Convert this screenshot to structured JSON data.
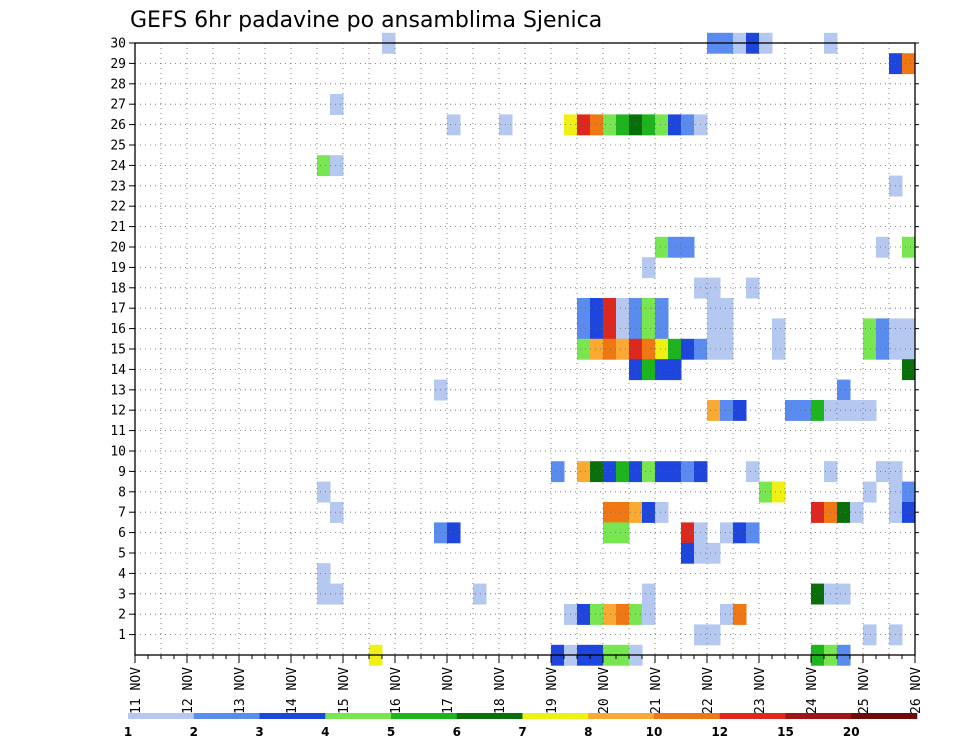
{
  "chart_data": {
    "type": "heatmap",
    "title": "GEFS 6hr padavine po ansamblima Sjenica",
    "x_labels": [
      "11 NOV",
      "12 NOV",
      "13 NOV",
      "14 NOV",
      "15 NOV",
      "16 NOV",
      "17 NOV",
      "18 NOV",
      "19 NOV",
      "20 NOV",
      "21 NOV",
      "22 NOV",
      "23 NOV",
      "24 NOV",
      "25 NOV",
      "26 NOV"
    ],
    "x_range_days": [
      11,
      26
    ],
    "y_range": [
      0,
      30
    ],
    "y_ticks": [
      1,
      2,
      3,
      4,
      5,
      6,
      7,
      8,
      9,
      10,
      11,
      12,
      13,
      14,
      15,
      16,
      17,
      18,
      19,
      20,
      21,
      22,
      23,
      24,
      25,
      26,
      27,
      28,
      29,
      30
    ],
    "grid": true,
    "legend": {
      "position": "bottom",
      "labels": [
        "1",
        "2",
        "3",
        "4",
        "5",
        "6",
        "7",
        "8",
        "10",
        "12",
        "15",
        "20"
      ],
      "colors": [
        "#b4c8f0",
        "#5a8cf0",
        "#1e46dc",
        "#78e650",
        "#1eb41e",
        "#0a6e0a",
        "#f0f014",
        "#faaa32",
        "#f07814",
        "#dc281e",
        "#a01414",
        "#6e0a0a"
      ]
    },
    "cells": [
      {
        "m": 30,
        "t": 15.75,
        "c": 1
      },
      {
        "m": 30,
        "t": 22.0,
        "c": 2
      },
      {
        "m": 30,
        "t": 22.25,
        "c": 2
      },
      {
        "m": 30,
        "t": 22.5,
        "c": 1
      },
      {
        "m": 30,
        "t": 22.75,
        "c": 3
      },
      {
        "m": 30,
        "t": 23.0,
        "c": 1
      },
      {
        "m": 30,
        "t": 24.25,
        "c": 1
      },
      {
        "m": 29,
        "t": 25.5,
        "c": 3
      },
      {
        "m": 29,
        "t": 25.75,
        "c": 9
      },
      {
        "m": 27,
        "t": 14.75,
        "c": 1
      },
      {
        "m": 26,
        "t": 17.0,
        "c": 1
      },
      {
        "m": 26,
        "t": 18.0,
        "c": 1
      },
      {
        "m": 26,
        "t": 19.25,
        "c": 7
      },
      {
        "m": 26,
        "t": 19.5,
        "c": 10
      },
      {
        "m": 26,
        "t": 19.75,
        "c": 9
      },
      {
        "m": 26,
        "t": 20.0,
        "c": 4
      },
      {
        "m": 26,
        "t": 20.25,
        "c": 5
      },
      {
        "m": 26,
        "t": 20.5,
        "c": 6
      },
      {
        "m": 26,
        "t": 20.75,
        "c": 5
      },
      {
        "m": 26,
        "t": 21.0,
        "c": 4
      },
      {
        "m": 26,
        "t": 21.25,
        "c": 3
      },
      {
        "m": 26,
        "t": 21.5,
        "c": 2
      },
      {
        "m": 26,
        "t": 21.75,
        "c": 1
      },
      {
        "m": 24,
        "t": 14.5,
        "c": 4
      },
      {
        "m": 24,
        "t": 14.75,
        "c": 1
      },
      {
        "m": 23,
        "t": 25.5,
        "c": 1
      },
      {
        "m": 20,
        "t": 21.0,
        "c": 4
      },
      {
        "m": 20,
        "t": 21.25,
        "c": 2
      },
      {
        "m": 20,
        "t": 21.5,
        "c": 2
      },
      {
        "m": 20,
        "t": 25.25,
        "c": 1
      },
      {
        "m": 20,
        "t": 25.75,
        "c": 4
      },
      {
        "m": 19,
        "t": 20.75,
        "c": 1
      },
      {
        "m": 18,
        "t": 21.75,
        "c": 1
      },
      {
        "m": 18,
        "t": 22.0,
        "c": 1
      },
      {
        "m": 18,
        "t": 22.75,
        "c": 1
      },
      {
        "m": 17,
        "t": 19.5,
        "c": 2
      },
      {
        "m": 17,
        "t": 19.75,
        "c": 3
      },
      {
        "m": 17,
        "t": 20.0,
        "c": 10
      },
      {
        "m": 17,
        "t": 20.25,
        "c": 1
      },
      {
        "m": 17,
        "t": 20.5,
        "c": 2
      },
      {
        "m": 17,
        "t": 20.75,
        "c": 4
      },
      {
        "m": 17,
        "t": 21.0,
        "c": 2
      },
      {
        "m": 17,
        "t": 22.0,
        "c": 1
      },
      {
        "m": 17,
        "t": 22.25,
        "c": 1
      },
      {
        "m": 16,
        "t": 19.5,
        "c": 2
      },
      {
        "m": 16,
        "t": 19.75,
        "c": 3
      },
      {
        "m": 16,
        "t": 20.0,
        "c": 10
      },
      {
        "m": 16,
        "t": 20.25,
        "c": 1
      },
      {
        "m": 16,
        "t": 20.5,
        "c": 2
      },
      {
        "m": 16,
        "t": 20.75,
        "c": 4
      },
      {
        "m": 16,
        "t": 21.0,
        "c": 2
      },
      {
        "m": 16,
        "t": 22.0,
        "c": 1
      },
      {
        "m": 16,
        "t": 22.25,
        "c": 1
      },
      {
        "m": 16,
        "t": 23.25,
        "c": 1
      },
      {
        "m": 16,
        "t": 25.0,
        "c": 4
      },
      {
        "m": 16,
        "t": 25.25,
        "c": 2
      },
      {
        "m": 16,
        "t": 25.5,
        "c": 1
      },
      {
        "m": 16,
        "t": 25.75,
        "c": 1
      },
      {
        "m": 15,
        "t": 19.5,
        "c": 4
      },
      {
        "m": 15,
        "t": 19.75,
        "c": 8
      },
      {
        "m": 15,
        "t": 20.0,
        "c": 9
      },
      {
        "m": 15,
        "t": 20.25,
        "c": 8
      },
      {
        "m": 15,
        "t": 20.5,
        "c": 10
      },
      {
        "m": 15,
        "t": 20.75,
        "c": 9
      },
      {
        "m": 15,
        "t": 21.0,
        "c": 7
      },
      {
        "m": 15,
        "t": 21.25,
        "c": 5
      },
      {
        "m": 15,
        "t": 21.5,
        "c": 3
      },
      {
        "m": 15,
        "t": 21.75,
        "c": 2
      },
      {
        "m": 15,
        "t": 22.0,
        "c": 1
      },
      {
        "m": 15,
        "t": 22.25,
        "c": 1
      },
      {
        "m": 15,
        "t": 23.25,
        "c": 1
      },
      {
        "m": 15,
        "t": 25.0,
        "c": 4
      },
      {
        "m": 15,
        "t": 25.25,
        "c": 2
      },
      {
        "m": 15,
        "t": 25.5,
        "c": 1
      },
      {
        "m": 15,
        "t": 25.75,
        "c": 1
      },
      {
        "m": 14,
        "t": 20.5,
        "c": 3
      },
      {
        "m": 14,
        "t": 20.75,
        "c": 5
      },
      {
        "m": 14,
        "t": 21.0,
        "c": 3
      },
      {
        "m": 14,
        "t": 21.25,
        "c": 3
      },
      {
        "m": 14,
        "t": 25.75,
        "c": 6
      },
      {
        "m": 13,
        "t": 16.75,
        "c": 1
      },
      {
        "m": 13,
        "t": 24.5,
        "c": 2
      },
      {
        "m": 12,
        "t": 22.0,
        "c": 8
      },
      {
        "m": 12,
        "t": 22.25,
        "c": 2
      },
      {
        "m": 12,
        "t": 22.5,
        "c": 3
      },
      {
        "m": 12,
        "t": 23.5,
        "c": 2
      },
      {
        "m": 12,
        "t": 23.75,
        "c": 2
      },
      {
        "m": 12,
        "t": 24.0,
        "c": 5
      },
      {
        "m": 12,
        "t": 24.25,
        "c": 1
      },
      {
        "m": 12,
        "t": 24.5,
        "c": 1
      },
      {
        "m": 12,
        "t": 24.75,
        "c": 1
      },
      {
        "m": 12,
        "t": 25.0,
        "c": 1
      },
      {
        "m": 9,
        "t": 19.0,
        "c": 2
      },
      {
        "m": 9,
        "t": 19.5,
        "c": 8
      },
      {
        "m": 9,
        "t": 19.75,
        "c": 6
      },
      {
        "m": 9,
        "t": 20.0,
        "c": 3
      },
      {
        "m": 9,
        "t": 20.25,
        "c": 5
      },
      {
        "m": 9,
        "t": 20.5,
        "c": 3
      },
      {
        "m": 9,
        "t": 20.75,
        "c": 4
      },
      {
        "m": 9,
        "t": 21.0,
        "c": 3
      },
      {
        "m": 9,
        "t": 21.25,
        "c": 3
      },
      {
        "m": 9,
        "t": 21.5,
        "c": 2
      },
      {
        "m": 9,
        "t": 21.75,
        "c": 3
      },
      {
        "m": 9,
        "t": 22.75,
        "c": 1
      },
      {
        "m": 9,
        "t": 24.25,
        "c": 1
      },
      {
        "m": 9,
        "t": 25.25,
        "c": 1
      },
      {
        "m": 9,
        "t": 25.5,
        "c": 1
      },
      {
        "m": 8,
        "t": 14.5,
        "c": 1
      },
      {
        "m": 8,
        "t": 23.0,
        "c": 4
      },
      {
        "m": 8,
        "t": 23.25,
        "c": 7
      },
      {
        "m": 8,
        "t": 25.0,
        "c": 1
      },
      {
        "m": 8,
        "t": 25.5,
        "c": 1
      },
      {
        "m": 8,
        "t": 25.75,
        "c": 2
      },
      {
        "m": 7,
        "t": 14.75,
        "c": 1
      },
      {
        "m": 7,
        "t": 20.0,
        "c": 9
      },
      {
        "m": 7,
        "t": 20.25,
        "c": 9
      },
      {
        "m": 7,
        "t": 20.5,
        "c": 8
      },
      {
        "m": 7,
        "t": 20.75,
        "c": 3
      },
      {
        "m": 7,
        "t": 21.0,
        "c": 1
      },
      {
        "m": 7,
        "t": 24.0,
        "c": 10
      },
      {
        "m": 7,
        "t": 24.25,
        "c": 9
      },
      {
        "m": 7,
        "t": 24.5,
        "c": 6
      },
      {
        "m": 7,
        "t": 24.75,
        "c": 1
      },
      {
        "m": 7,
        "t": 25.5,
        "c": 1
      },
      {
        "m": 7,
        "t": 25.75,
        "c": 3
      },
      {
        "m": 6,
        "t": 16.75,
        "c": 2
      },
      {
        "m": 6,
        "t": 17.0,
        "c": 3
      },
      {
        "m": 6,
        "t": 20.0,
        "c": 4
      },
      {
        "m": 6,
        "t": 20.25,
        "c": 4
      },
      {
        "m": 6,
        "t": 21.5,
        "c": 10
      },
      {
        "m": 6,
        "t": 21.75,
        "c": 1
      },
      {
        "m": 6,
        "t": 22.25,
        "c": 1
      },
      {
        "m": 6,
        "t": 22.5,
        "c": 3
      },
      {
        "m": 6,
        "t": 22.75,
        "c": 2
      },
      {
        "m": 5,
        "t": 21.5,
        "c": 3
      },
      {
        "m": 5,
        "t": 21.75,
        "c": 1
      },
      {
        "m": 5,
        "t": 22.0,
        "c": 1
      },
      {
        "m": 4,
        "t": 14.5,
        "c": 1
      },
      {
        "m": 3,
        "t": 14.5,
        "c": 1
      },
      {
        "m": 3,
        "t": 14.75,
        "c": 1
      },
      {
        "m": 3,
        "t": 17.5,
        "c": 1
      },
      {
        "m": 3,
        "t": 20.75,
        "c": 1
      },
      {
        "m": 3,
        "t": 24.0,
        "c": 6
      },
      {
        "m": 3,
        "t": 24.25,
        "c": 1
      },
      {
        "m": 3,
        "t": 24.5,
        "c": 1
      },
      {
        "m": 2,
        "t": 19.25,
        "c": 1
      },
      {
        "m": 2,
        "t": 19.5,
        "c": 3
      },
      {
        "m": 2,
        "t": 19.75,
        "c": 4
      },
      {
        "m": 2,
        "t": 20.0,
        "c": 8
      },
      {
        "m": 2,
        "t": 20.25,
        "c": 9
      },
      {
        "m": 2,
        "t": 20.5,
        "c": 4
      },
      {
        "m": 2,
        "t": 20.75,
        "c": 1
      },
      {
        "m": 2,
        "t": 22.25,
        "c": 1
      },
      {
        "m": 2,
        "t": 22.5,
        "c": 9
      },
      {
        "m": 1,
        "t": 21.75,
        "c": 1
      },
      {
        "m": 1,
        "t": 22.0,
        "c": 1
      },
      {
        "m": 1,
        "t": 25.0,
        "c": 1
      },
      {
        "m": 1,
        "t": 25.5,
        "c": 1
      },
      {
        "m": 0,
        "t": 15.5,
        "c": 7
      },
      {
        "m": 0,
        "t": 19.0,
        "c": 3
      },
      {
        "m": 0,
        "t": 19.25,
        "c": 1
      },
      {
        "m": 0,
        "t": 19.5,
        "c": 3
      },
      {
        "m": 0,
        "t": 19.75,
        "c": 3
      },
      {
        "m": 0,
        "t": 20.0,
        "c": 4
      },
      {
        "m": 0,
        "t": 20.25,
        "c": 4
      },
      {
        "m": 0,
        "t": 20.5,
        "c": 1
      },
      {
        "m": 0,
        "t": 24.0,
        "c": 5
      },
      {
        "m": 0,
        "t": 24.25,
        "c": 4
      },
      {
        "m": 0,
        "t": 24.5,
        "c": 2
      }
    ]
  }
}
